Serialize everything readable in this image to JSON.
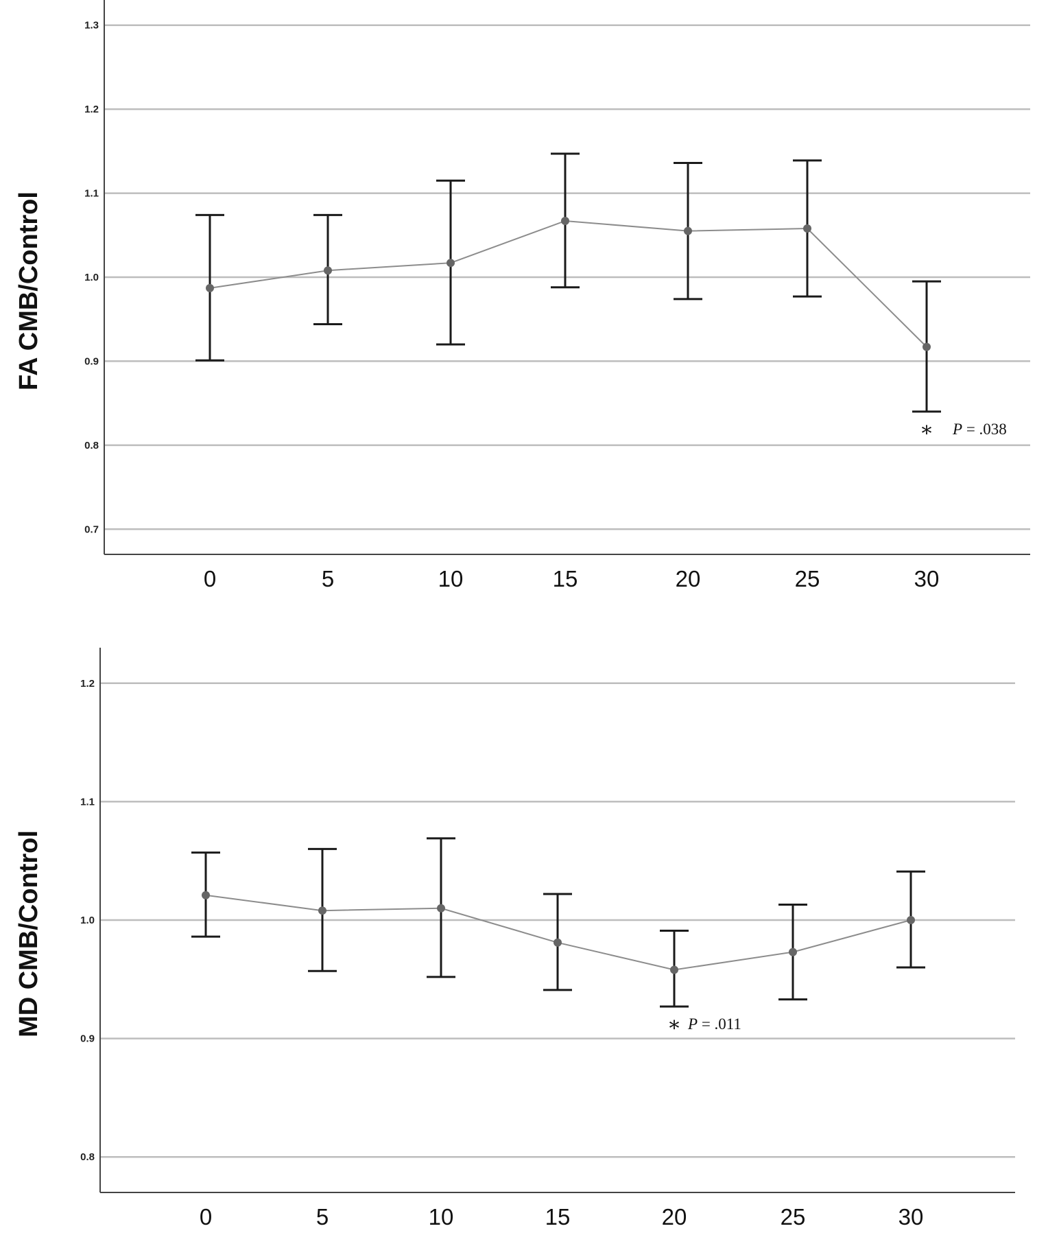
{
  "chart_data": [
    {
      "type": "line",
      "ylabel": "FA CMB/Control",
      "xlabel": "",
      "ylim": [
        0.67,
        1.33
      ],
      "yticks": [
        "0.7",
        "0.8",
        "0.9",
        "1.0",
        "1.1",
        "1.2",
        "1.3"
      ],
      "grid": true,
      "x": [
        0,
        5,
        10,
        15,
        20,
        25,
        30
      ],
      "xtick_labels": [
        "0",
        "5",
        "10",
        "15",
        "20",
        "25",
        "30"
      ],
      "series": [
        {
          "values": [
            0.987,
            1.008,
            1.017,
            1.067,
            1.055,
            1.058,
            0.917
          ],
          "error_low": [
            0.901,
            0.944,
            0.92,
            0.988,
            0.974,
            0.977,
            0.84
          ],
          "error_high": [
            1.074,
            1.074,
            1.115,
            1.147,
            1.136,
            1.139,
            0.995
          ]
        }
      ],
      "annotation": {
        "x": 30,
        "star": "*",
        "text_italic": "P",
        "text": " = .038"
      }
    },
    {
      "type": "line",
      "ylabel": "MD CMB/Control",
      "xlabel": "",
      "ylim": [
        0.77,
        1.23
      ],
      "yticks": [
        "0.8",
        "0.9",
        "1.0",
        "1.1",
        "1.2"
      ],
      "grid": true,
      "x": [
        0,
        5,
        10,
        15,
        20,
        25,
        30
      ],
      "xtick_labels": [
        "0",
        "5",
        "10",
        "15",
        "20",
        "25",
        "30"
      ],
      "series": [
        {
          "values": [
            1.021,
            1.008,
            1.01,
            0.981,
            0.958,
            0.973,
            1.0
          ],
          "error_low": [
            0.986,
            0.957,
            0.952,
            0.941,
            0.927,
            0.933,
            0.96
          ],
          "error_high": [
            1.057,
            1.06,
            1.069,
            1.022,
            0.991,
            1.013,
            1.041
          ]
        }
      ],
      "annotation": {
        "x": 20,
        "star": "*",
        "text_italic": "P",
        "text": " = .011"
      }
    }
  ]
}
